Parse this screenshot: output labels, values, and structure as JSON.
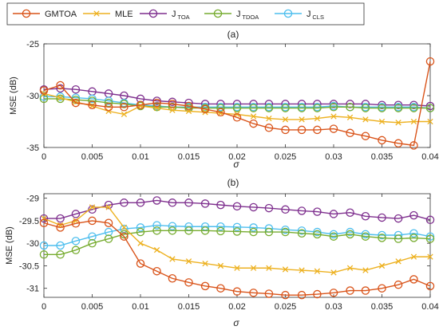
{
  "legend": {
    "entries": [
      {
        "label": "GMTOA",
        "sub": "",
        "color": "#d95319",
        "marker": "circle"
      },
      {
        "label": "MLE",
        "sub": "",
        "color": "#edb120",
        "marker": "x"
      },
      {
        "label": "J",
        "sub": "TOA",
        "color": "#7e2f8e",
        "marker": "circle"
      },
      {
        "label": "J",
        "sub": "TDOA",
        "color": "#77ac30",
        "marker": "circle"
      },
      {
        "label": "J",
        "sub": "CLS",
        "color": "#4dbeee",
        "marker": "circle"
      }
    ]
  },
  "chart_data": [
    {
      "type": "line",
      "title": "(a)",
      "xlabel": "σ",
      "ylabel": "MSE (dB)",
      "xlim": [
        0,
        0.04
      ],
      "ylim": [
        -35,
        -25
      ],
      "xticks": [
        0,
        0.005,
        0.01,
        0.015,
        0.02,
        0.025,
        0.03,
        0.035,
        0.04
      ],
      "xtick_labels": [
        "0",
        "0.005",
        "0.01",
        "0.015",
        "0.02",
        "0.025",
        "0.03",
        "0.035",
        "0.04"
      ],
      "yticks": [
        -35,
        -30,
        -25
      ],
      "ytick_labels": [
        "-35",
        "-30",
        "-25"
      ],
      "grid": false,
      "x": [
        0,
        0.0017,
        0.0033,
        0.005,
        0.0067,
        0.0083,
        0.01,
        0.0117,
        0.0133,
        0.015,
        0.0167,
        0.0183,
        0.02,
        0.0217,
        0.0233,
        0.025,
        0.0267,
        0.0283,
        0.03,
        0.0317,
        0.0333,
        0.035,
        0.0367,
        0.0383,
        0.04
      ],
      "series": [
        {
          "name": "GMTOA",
          "values": [
            -29.5,
            -29.0,
            -30.7,
            -30.9,
            -31.1,
            -31.1,
            -30.9,
            -30.7,
            -30.8,
            -31.0,
            -31.3,
            -31.6,
            -32.1,
            -32.7,
            -33.1,
            -33.3,
            -33.3,
            -33.3,
            -33.2,
            -33.6,
            -33.9,
            -34.3,
            -34.6,
            -34.8,
            -26.7
          ]
        },
        {
          "name": "MLE",
          "values": [
            -29.8,
            -30.2,
            -30.6,
            -31.0,
            -31.5,
            -31.8,
            -31.0,
            -31.2,
            -31.4,
            -31.5,
            -31.6,
            -31.7,
            -31.8,
            -32.0,
            -32.2,
            -32.3,
            -32.3,
            -32.2,
            -32.0,
            -32.1,
            -32.3,
            -32.5,
            -32.6,
            -32.5,
            -32.5
          ]
        },
        {
          "name": "J TOA",
          "values": [
            -29.4,
            -29.3,
            -29.4,
            -29.6,
            -29.8,
            -30.0,
            -30.3,
            -30.5,
            -30.6,
            -30.7,
            -30.8,
            -30.8,
            -30.8,
            -30.8,
            -30.8,
            -30.8,
            -30.8,
            -30.8,
            -30.8,
            -30.8,
            -30.8,
            -30.9,
            -30.9,
            -30.9,
            -31.0
          ]
        },
        {
          "name": "J TDOA",
          "values": [
            -30.3,
            -30.3,
            -30.4,
            -30.5,
            -30.7,
            -30.8,
            -31.0,
            -31.1,
            -31.1,
            -31.2,
            -31.2,
            -31.2,
            -31.2,
            -31.2,
            -31.2,
            -31.2,
            -31.2,
            -31.2,
            -31.1,
            -31.1,
            -31.2,
            -31.2,
            -31.2,
            -31.2,
            -31.2
          ]
        },
        {
          "name": "J CLS",
          "values": [
            -30.1,
            -30.1,
            -30.2,
            -30.3,
            -30.5,
            -30.7,
            -30.9,
            -31.0,
            -31.1,
            -31.1,
            -31.1,
            -31.1,
            -31.1,
            -31.1,
            -31.1,
            -31.1,
            -31.1,
            -31.1,
            -31.0,
            -31.1,
            -31.1,
            -31.1,
            -31.1,
            -31.1,
            -31.2
          ]
        }
      ]
    },
    {
      "type": "line",
      "title": "(b)",
      "xlabel": "σ",
      "ylabel": "MSE (dB)",
      "xlim": [
        0,
        0.04
      ],
      "ylim": [
        -31.2,
        -28.9
      ],
      "xticks": [
        0,
        0.005,
        0.01,
        0.015,
        0.02,
        0.025,
        0.03,
        0.035,
        0.04
      ],
      "xtick_labels": [
        "0",
        "0.005",
        "0.01",
        "0.015",
        "0.02",
        "0.025",
        "0.03",
        "0.035",
        "0.04"
      ],
      "yticks": [
        -31,
        -30.5,
        -30,
        -29.5,
        -29
      ],
      "ytick_labels": [
        "-31",
        "-30.5",
        "-30",
        "-29.5",
        "-29"
      ],
      "grid": false,
      "x": [
        0,
        0.0017,
        0.0033,
        0.005,
        0.0067,
        0.0083,
        0.01,
        0.0117,
        0.0133,
        0.015,
        0.0167,
        0.0183,
        0.02,
        0.0217,
        0.0233,
        0.025,
        0.0267,
        0.0283,
        0.03,
        0.0317,
        0.0333,
        0.035,
        0.0367,
        0.0383,
        0.04
      ],
      "series": [
        {
          "name": "GMTOA",
          "values": [
            -29.55,
            -29.65,
            -29.56,
            -29.5,
            -29.55,
            -29.85,
            -30.45,
            -30.62,
            -30.78,
            -30.87,
            -30.95,
            -31.0,
            -31.07,
            -31.1,
            -31.12,
            -31.15,
            -31.15,
            -31.13,
            -31.1,
            -31.05,
            -31.05,
            -31.0,
            -30.92,
            -30.8,
            -30.95
          ]
        },
        {
          "name": "MLE",
          "values": [
            -29.45,
            -29.6,
            -29.5,
            -29.2,
            -29.2,
            -29.65,
            -30.0,
            -30.15,
            -30.35,
            -30.4,
            -30.45,
            -30.5,
            -30.55,
            -30.55,
            -30.55,
            -30.58,
            -30.6,
            -30.62,
            -30.65,
            -30.55,
            -30.6,
            -30.5,
            -30.4,
            -30.3,
            -30.3
          ]
        },
        {
          "name": "J TOA",
          "values": [
            -29.45,
            -29.45,
            -29.35,
            -29.25,
            -29.15,
            -29.1,
            -29.1,
            -29.05,
            -29.1,
            -29.1,
            -29.12,
            -29.15,
            -29.18,
            -29.2,
            -29.22,
            -29.25,
            -29.28,
            -29.3,
            -29.35,
            -29.32,
            -29.4,
            -29.43,
            -29.45,
            -29.38,
            -29.48
          ]
        },
        {
          "name": "J TDOA",
          "values": [
            -30.25,
            -30.25,
            -30.15,
            -30.0,
            -29.9,
            -29.8,
            -29.75,
            -29.72,
            -29.72,
            -29.72,
            -29.72,
            -29.73,
            -29.74,
            -29.75,
            -29.75,
            -29.75,
            -29.78,
            -29.8,
            -29.85,
            -29.8,
            -29.85,
            -29.88,
            -29.9,
            -29.88,
            -29.9
          ]
        },
        {
          "name": "J CLS",
          "values": [
            -30.05,
            -30.05,
            -29.95,
            -29.85,
            -29.75,
            -29.68,
            -29.65,
            -29.6,
            -29.62,
            -29.63,
            -29.63,
            -29.63,
            -29.64,
            -29.65,
            -29.67,
            -29.7,
            -29.72,
            -29.75,
            -29.8,
            -29.75,
            -29.8,
            -29.82,
            -29.82,
            -29.78,
            -29.85
          ]
        }
      ]
    }
  ]
}
